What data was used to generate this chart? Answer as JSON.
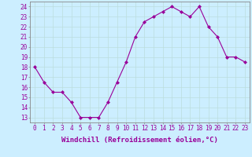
{
  "x": [
    0,
    1,
    2,
    3,
    4,
    5,
    6,
    7,
    8,
    9,
    10,
    11,
    12,
    13,
    14,
    15,
    16,
    17,
    18,
    19,
    20,
    21,
    22,
    23
  ],
  "y": [
    18,
    16.5,
    15.5,
    15.5,
    14.5,
    13,
    13,
    13,
    14.5,
    16.5,
    18.5,
    21,
    22.5,
    23,
    23.5,
    24,
    23.5,
    23,
    24,
    22,
    21,
    19,
    19,
    18.5
  ],
  "line_color": "#990099",
  "marker": "D",
  "marker_size": 2,
  "marker_color": "#990099",
  "bg_color": "#cceeff",
  "grid_color": "#bbdddd",
  "xlabel": "Windchill (Refroidissement éolien,°C)",
  "xlabel_fontsize": 6.5,
  "tick_fontsize": 5.5,
  "yticks": [
    13,
    14,
    15,
    16,
    17,
    18,
    19,
    20,
    21,
    22,
    23,
    24
  ],
  "xticks": [
    0,
    1,
    2,
    3,
    4,
    5,
    6,
    7,
    8,
    9,
    10,
    11,
    12,
    13,
    14,
    15,
    16,
    17,
    18,
    19,
    20,
    21,
    22,
    23
  ],
  "ylim": [
    12.5,
    24.5
  ],
  "xlim": [
    -0.5,
    23.5
  ]
}
